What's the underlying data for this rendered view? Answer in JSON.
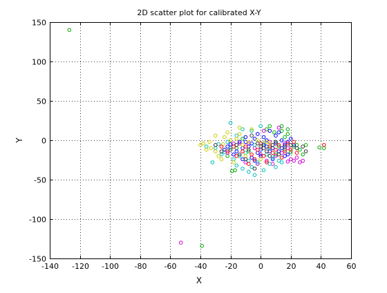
{
  "chart_data": {
    "type": "scatter",
    "title": "2D scatter plot for calibrated X-Y",
    "xlabel": "X",
    "ylabel": "Y",
    "xlim": [
      -140,
      60
    ],
    "ylim": [
      -150,
      150
    ],
    "xticks": [
      -140,
      -120,
      -100,
      -80,
      -60,
      -40,
      -20,
      0,
      20,
      40,
      60
    ],
    "yticks": [
      -150,
      -100,
      -50,
      0,
      50,
      100,
      150
    ],
    "grid": true,
    "marker": "open-circle",
    "series": [
      {
        "color": "#00aa00",
        "points": [
          [
            -127,
            140
          ],
          [
            -39,
            -134
          ],
          [
            9,
            10
          ],
          [
            14,
            12
          ],
          [
            18,
            14
          ],
          [
            12,
            -8
          ],
          [
            16,
            -12
          ],
          [
            20,
            -15
          ],
          [
            -19,
            -39
          ],
          [
            -17,
            -38
          ],
          [
            6,
            18
          ],
          [
            14,
            18
          ],
          [
            18,
            8
          ],
          [
            -22,
            -20
          ],
          [
            10,
            -18
          ],
          [
            24,
            -6
          ],
          [
            39,
            -9
          ],
          [
            42,
            -10
          ],
          [
            28,
            -18
          ],
          [
            6,
            -10
          ],
          [
            2,
            -4
          ],
          [
            22,
            -8
          ],
          [
            16,
            4
          ],
          [
            -8,
            -14
          ],
          [
            -12,
            2
          ],
          [
            26,
            -12
          ],
          [
            4,
            14
          ],
          [
            10,
            -2
          ],
          [
            -16,
            -10
          ],
          [
            30,
            -6
          ]
        ]
      },
      {
        "color": "#cc00cc",
        "points": [
          [
            -53,
            -130
          ],
          [
            22,
            -26
          ],
          [
            26,
            -28
          ],
          [
            18,
            -27
          ],
          [
            -22,
            -16
          ],
          [
            -14,
            -4
          ],
          [
            4,
            -26
          ],
          [
            12,
            16
          ],
          [
            16,
            -4
          ],
          [
            10,
            -20
          ],
          [
            0,
            -18
          ],
          [
            28,
            -26
          ],
          [
            -8,
            -4
          ],
          [
            20,
            -24
          ],
          [
            8,
            -30
          ],
          [
            -4,
            -10
          ],
          [
            14,
            -16
          ],
          [
            6,
            -2
          ],
          [
            -2,
            -30
          ],
          [
            24,
            -22
          ],
          [
            -10,
            -28
          ],
          [
            2,
            12
          ],
          [
            18,
            -10
          ],
          [
            -18,
            -4
          ]
        ]
      },
      {
        "color": "#0000ff",
        "points": [
          [
            -20,
            -5
          ],
          [
            -10,
            -2
          ],
          [
            -4,
            2
          ],
          [
            2,
            -6
          ],
          [
            6,
            -14
          ],
          [
            10,
            -4
          ],
          [
            14,
            -10
          ],
          [
            18,
            -18
          ],
          [
            -2,
            -16
          ],
          [
            -6,
            -22
          ],
          [
            -12,
            -10
          ],
          [
            -16,
            -14
          ],
          [
            0,
            -12
          ],
          [
            4,
            -8
          ],
          [
            8,
            -10
          ],
          [
            12,
            -14
          ],
          [
            16,
            -6
          ],
          [
            20,
            2
          ],
          [
            22,
            -6
          ],
          [
            -8,
            -8
          ],
          [
            -14,
            -2
          ],
          [
            -18,
            -18
          ],
          [
            4,
            0
          ],
          [
            8,
            -24
          ],
          [
            -4,
            -26
          ],
          [
            -12,
            -24
          ],
          [
            -22,
            -8
          ],
          [
            14,
            0
          ],
          [
            10,
            6
          ],
          [
            -6,
            -4
          ],
          [
            2,
            4
          ],
          [
            18,
            -2
          ],
          [
            -2,
            8
          ],
          [
            -10,
            4
          ],
          [
            6,
            12
          ],
          [
            12,
            10
          ],
          [
            -24,
            -12
          ],
          [
            0,
            -20
          ],
          [
            16,
            -20
          ]
        ]
      },
      {
        "color": "#00bbbb",
        "points": [
          [
            -24,
            -15
          ],
          [
            -16,
            -32
          ],
          [
            -12,
            -36
          ],
          [
            -8,
            -40
          ],
          [
            -20,
            -10
          ],
          [
            -28,
            -5
          ],
          [
            -32,
            -28
          ],
          [
            -4,
            -44
          ],
          [
            -14,
            -20
          ],
          [
            -10,
            -16
          ],
          [
            -6,
            -34
          ],
          [
            -2,
            -28
          ],
          [
            2,
            -38
          ],
          [
            -18,
            -24
          ],
          [
            -22,
            -2
          ],
          [
            -26,
            -18
          ],
          [
            -8,
            -26
          ],
          [
            4,
            -18
          ],
          [
            8,
            -22
          ],
          [
            12,
            -26
          ],
          [
            -6,
            12
          ],
          [
            0,
            18
          ],
          [
            -12,
            14
          ],
          [
            -16,
            6
          ],
          [
            -4,
            -6
          ],
          [
            10,
            -34
          ],
          [
            6,
            -30
          ],
          [
            -30,
            -10
          ],
          [
            -20,
            22
          ],
          [
            -36,
            -8
          ],
          [
            14,
            -28
          ]
        ]
      },
      {
        "color": "#cccc00",
        "points": [
          [
            -33,
            -10
          ],
          [
            -30,
            -14
          ],
          [
            -36,
            -12
          ],
          [
            -25,
            -5
          ],
          [
            -38,
            -4
          ],
          [
            -34,
            -2
          ],
          [
            -20,
            0
          ],
          [
            -16,
            2
          ],
          [
            -12,
            -6
          ],
          [
            -8,
            -2
          ],
          [
            -2,
            0
          ],
          [
            4,
            -2
          ],
          [
            -24,
            4
          ],
          [
            -14,
            8
          ],
          [
            -30,
            6
          ],
          [
            -26,
            -24
          ],
          [
            -18,
            -28
          ],
          [
            -10,
            -20
          ],
          [
            0,
            -24
          ],
          [
            6,
            -4
          ],
          [
            -6,
            14
          ],
          [
            -28,
            -20
          ],
          [
            -22,
            10
          ],
          [
            -40,
            -6
          ],
          [
            -14,
            16
          ]
        ]
      },
      {
        "color": "#ff0000",
        "points": [
          [
            -18,
            -8
          ],
          [
            -6,
            -18
          ],
          [
            -2,
            -12
          ],
          [
            6,
            -8
          ],
          [
            14,
            -22
          ],
          [
            20,
            -12
          ],
          [
            -12,
            -14
          ],
          [
            -26,
            -8
          ],
          [
            0,
            -4
          ],
          [
            8,
            -16
          ],
          [
            12,
            -6
          ],
          [
            -4,
            -24
          ],
          [
            16,
            -14
          ],
          [
            42,
            -6
          ],
          [
            24,
            -16
          ],
          [
            -8,
            -30
          ],
          [
            2,
            -20
          ],
          [
            -16,
            -20
          ],
          [
            10,
            -12
          ],
          [
            18,
            -4
          ],
          [
            -22,
            -14
          ],
          [
            4,
            -28
          ],
          [
            -10,
            -8
          ],
          [
            22,
            -2
          ]
        ]
      },
      {
        "color": "#333333",
        "points": [
          [
            -14,
            -18
          ],
          [
            -8,
            -12
          ],
          [
            -2,
            -4
          ],
          [
            2,
            -10
          ],
          [
            8,
            -6
          ],
          [
            -20,
            -12
          ],
          [
            -26,
            -14
          ],
          [
            16,
            -8
          ],
          [
            28,
            -8
          ],
          [
            -4,
            -36
          ],
          [
            4,
            -14
          ],
          [
            12,
            -18
          ],
          [
            -10,
            -24
          ],
          [
            20,
            -6
          ],
          [
            24,
            -10
          ],
          [
            -16,
            -6
          ],
          [
            0,
            -8
          ],
          [
            10,
            -2
          ],
          [
            -6,
            6
          ],
          [
            30,
            -14
          ],
          [
            -30,
            -6
          ],
          [
            6,
            -20
          ]
        ]
      }
    ]
  }
}
